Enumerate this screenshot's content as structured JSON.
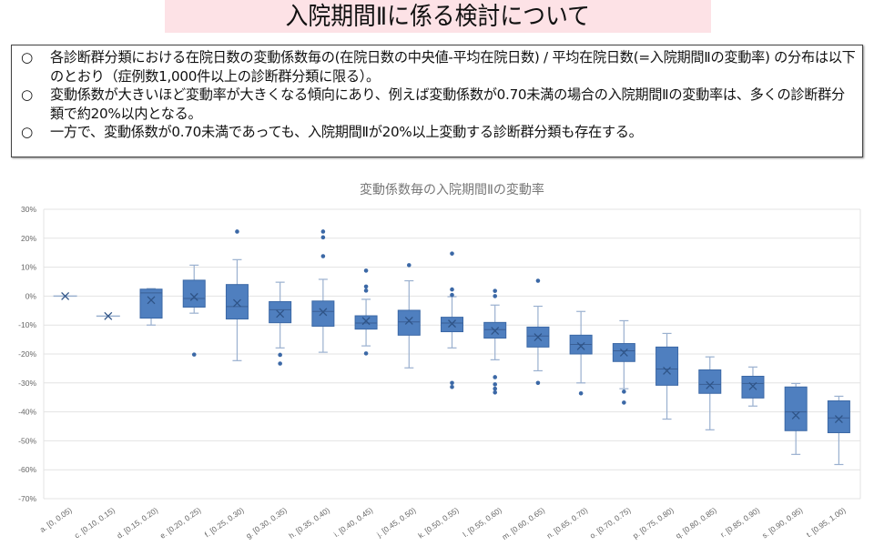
{
  "header": {
    "title": "入院期間Ⅱに係る検討について"
  },
  "summary": {
    "bullet_mark": "○",
    "bullets": [
      "各診断群分類における在院日数の変動係数毎の(在院日数の中央値-平均在院日数) / 平均在院日数(=入院期間Ⅱの変動率) の分布は以下のとおり（症例数1,000件以上の診断群分類に限る）。",
      "変動係数が大きいほど変動率が大きくなる傾向にあり、例えば変動係数が0.70未満の場合の入院期間Ⅱの変動率は、多くの診断群分類で約20%以内となる。",
      "一方で、変動係数が0.70未満であっても、入院期間Ⅱが20%以上変動する診断群分類も存在する。"
    ]
  },
  "colors": {
    "box_fill": "#4f7fbf",
    "box_stroke": "#3b68a6",
    "whisker": "#9ab0cf",
    "grid": "#e3e3e3",
    "text": "#666666"
  },
  "chart_data": {
    "type": "box",
    "title": "変動係数毎の入院期間Ⅱの変動率",
    "xlabel": "",
    "ylabel": "",
    "ylim": [
      -70,
      30
    ],
    "yticks": [
      30,
      20,
      10,
      0,
      -10,
      -20,
      -30,
      -40,
      -50,
      -60,
      -70
    ],
    "ytick_labels": [
      "30%",
      "20%",
      "10%",
      "0%",
      "-10%",
      "-20%",
      "-30%",
      "-40%",
      "-50%",
      "-60%",
      "-70%"
    ],
    "grid": true,
    "categories": [
      "a. [0, 0.05)",
      "c. [0.10, 0.15)",
      "d. [0.15, 0.20)",
      "e. [0.20, 0.25)",
      "f. [0.25, 0.30)",
      "g. [0.30, 0.35)",
      "h. [0.35, 0.40)",
      "i. [0.40, 0.45)",
      "j. [0.45, 0.50)",
      "k. [0.50, 0.55)",
      "l. [0.55, 0.60)",
      "m. [0.60, 0.65)",
      "n. [0.65, 0.70)",
      "o. [0.70, 0.75)",
      "p. [0.75, 0.80)",
      "q. [0.80, 0.85)",
      "r. [0.85, 0.90)",
      "s. [0.90, 0.95)",
      "t. [0.95, 1.00)"
    ],
    "boxes": [
      {
        "min": 0,
        "q1": 0,
        "median": 0,
        "q3": 0,
        "max": 0,
        "mean": 0,
        "outliers": []
      },
      {
        "min": -6.9,
        "q1": -6.9,
        "median": -6.9,
        "q3": -6.9,
        "max": -6.9,
        "mean": -6.9,
        "outliers": []
      },
      {
        "min": -10,
        "q1": -7.6,
        "median": 1.1,
        "q3": 2.4,
        "max": 2.6,
        "mean": -1.4,
        "outliers": []
      },
      {
        "min": -5.9,
        "q1": -3.8,
        "median": -0.8,
        "q3": 5.5,
        "max": 10.7,
        "mean": -0.3,
        "outliers": [
          -20.2
        ]
      },
      {
        "min": -22.3,
        "q1": -7.9,
        "median": -3.6,
        "q3": 4.0,
        "max": 12.6,
        "mean": -2.4,
        "outliers": [
          22.3
        ]
      },
      {
        "min": -17.9,
        "q1": -9.2,
        "median": -4.7,
        "q3": -1.9,
        "max": 4.8,
        "mean": -6.1,
        "outliers": [
          -20.3,
          -23.3
        ]
      },
      {
        "min": -19.4,
        "q1": -10.4,
        "median": -5.3,
        "q3": -1.7,
        "max": 5.8,
        "mean": -5.5,
        "outliers": [
          22.3,
          20.3,
          13.8
        ]
      },
      {
        "min": -17.2,
        "q1": -11.4,
        "median": -9.3,
        "q3": -6.8,
        "max": -1.1,
        "mean": -8.6,
        "outliers": [
          8.8,
          3.3,
          1.9,
          -19.8
        ]
      },
      {
        "min": -24.8,
        "q1": -13.5,
        "median": -8.9,
        "q3": -4.9,
        "max": 5.3,
        "mean": -8.5,
        "outliers": [
          10.7
        ]
      },
      {
        "min": -17.9,
        "q1": -12.3,
        "median": -9.3,
        "q3": -7.3,
        "max": -0.2,
        "mean": -9.5,
        "outliers": [
          14.7,
          2.3,
          0.4,
          -30,
          -31.4
        ]
      },
      {
        "min": -22,
        "q1": -14.5,
        "median": -11.6,
        "q3": -9.1,
        "max": -3.1,
        "mean": -12,
        "outliers": [
          1.8,
          0,
          -28,
          -30.5,
          -32,
          -33.3
        ]
      },
      {
        "min": -25.8,
        "q1": -17.6,
        "median": -13.8,
        "q3": -10.7,
        "max": -3.5,
        "mean": -14.2,
        "outliers": [
          5.3,
          -30
        ]
      },
      {
        "min": -30,
        "q1": -20,
        "median": -16.7,
        "q3": -13.5,
        "max": -5.3,
        "mean": -17.3,
        "outliers": [
          -33.6
        ]
      },
      {
        "min": -32,
        "q1": -22.6,
        "median": -18.9,
        "q3": -16.4,
        "max": -8.5,
        "mean": -19.5,
        "outliers": [
          -33,
          -36.8
        ]
      },
      {
        "min": -42.5,
        "q1": -30.8,
        "median": -25.2,
        "q3": -17.6,
        "max": -12.9,
        "mean": -25.8,
        "outliers": []
      },
      {
        "min": -46.2,
        "q1": -33.6,
        "median": -30.5,
        "q3": -25.5,
        "max": -21,
        "mean": -30.8,
        "outliers": []
      },
      {
        "min": -38,
        "q1": -35.2,
        "median": -30.2,
        "q3": -27.7,
        "max": -24.5,
        "mean": -31.1,
        "outliers": []
      },
      {
        "min": -54.7,
        "q1": -46.5,
        "median": -40,
        "q3": -31.4,
        "max": -30.2,
        "mean": -41.2,
        "outliers": []
      },
      {
        "min": -58.2,
        "q1": -47.2,
        "median": -42.1,
        "q3": -36.2,
        "max": -34.6,
        "mean": -42.5,
        "outliers": []
      }
    ]
  }
}
